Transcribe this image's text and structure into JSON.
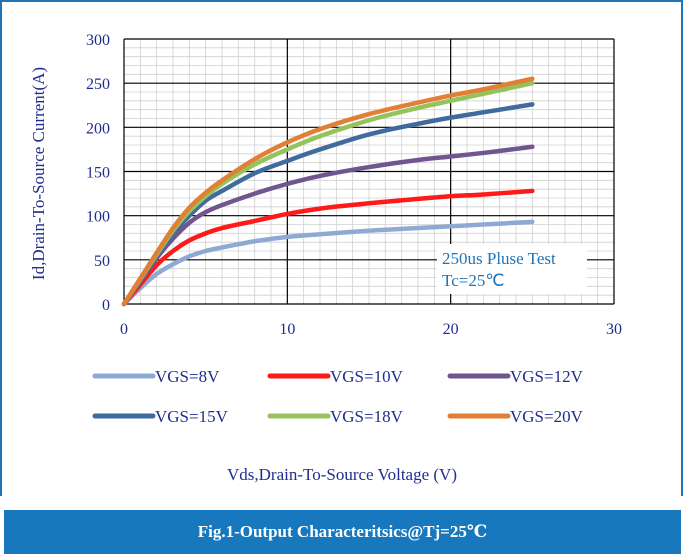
{
  "colors": {
    "frame": "#1f74b8",
    "caption_bg": "#1878bd",
    "axis_text": "#1f2d8f",
    "annotation": "#1f74b8"
  },
  "caption": "Fig.1-Output Characteritsics@Tj=25℃",
  "chart_data": {
    "type": "line",
    "xlabel": "Vds,Drain-To-Source Voltage (V)",
    "ylabel": "Id,Drain-To-Source Current(A)",
    "xlim": [
      0,
      30
    ],
    "ylim": [
      0,
      300
    ],
    "xticks": [
      0,
      10,
      20,
      30
    ],
    "yticks": [
      0,
      50,
      100,
      150,
      200,
      250,
      300
    ],
    "grid": true,
    "legend_position": "bottom",
    "annotation": [
      "250us Pluse Test",
      "Tc=25℃"
    ],
    "series": [
      {
        "name": "VGS=8V",
        "color": "#8eaad3",
        "x": [
          0,
          1,
          2,
          3,
          4,
          5,
          6,
          8,
          10,
          12,
          15,
          18,
          20,
          22,
          25
        ],
        "y": [
          0,
          18,
          34,
          45,
          54,
          60,
          64,
          71,
          76,
          79,
          83,
          86,
          88,
          90,
          93
        ]
      },
      {
        "name": "VGS=10V",
        "color": "#ff1a1a",
        "x": [
          0,
          1,
          2,
          3,
          4,
          5,
          6,
          8,
          10,
          12,
          15,
          18,
          20,
          22,
          25
        ],
        "y": [
          0,
          22,
          44,
          60,
          72,
          80,
          86,
          94,
          102,
          108,
          114,
          119,
          122,
          124,
          128
        ]
      },
      {
        "name": "VGS=12V",
        "color": "#70558f",
        "x": [
          0,
          1,
          2,
          3,
          4,
          5,
          6,
          8,
          10,
          12,
          15,
          18,
          20,
          22,
          25
        ],
        "y": [
          0,
          26,
          52,
          74,
          92,
          104,
          112,
          125,
          136,
          145,
          155,
          163,
          167,
          171,
          178
        ]
      },
      {
        "name": "VGS=15V",
        "color": "#3f6b9e",
        "x": [
          0,
          1,
          2,
          3,
          4,
          5,
          6,
          8,
          10,
          12,
          15,
          18,
          20,
          22,
          25
        ],
        "y": [
          0,
          27,
          54,
          80,
          100,
          117,
          128,
          148,
          162,
          175,
          192,
          204,
          211,
          217,
          226
        ]
      },
      {
        "name": "VGS=18V",
        "color": "#94c25b",
        "x": [
          0,
          1,
          2,
          3,
          4,
          5,
          6,
          8,
          10,
          12,
          15,
          18,
          20,
          22,
          25
        ],
        "y": [
          0,
          28,
          56,
          83,
          105,
          122,
          136,
          158,
          175,
          190,
          208,
          222,
          230,
          238,
          250
        ]
      },
      {
        "name": "VGS=20V",
        "color": "#e07f35",
        "x": [
          0,
          1,
          2,
          3,
          4,
          5,
          6,
          8,
          10,
          12,
          15,
          18,
          20,
          22,
          25
        ],
        "y": [
          0,
          29,
          58,
          86,
          109,
          126,
          140,
          164,
          183,
          198,
          215,
          228,
          236,
          243,
          255
        ]
      }
    ]
  }
}
